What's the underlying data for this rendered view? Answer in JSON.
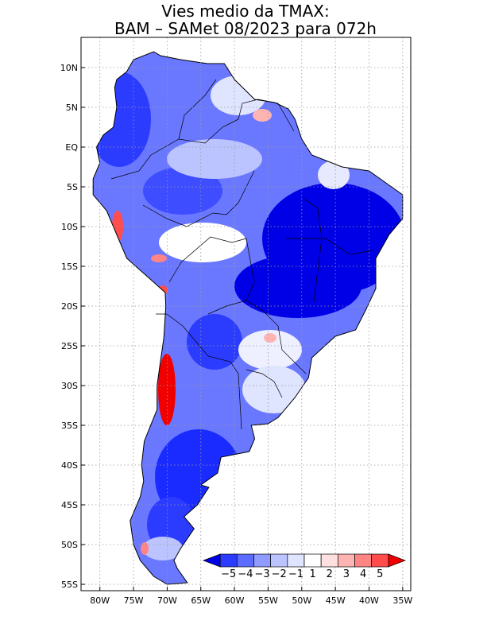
{
  "title_line1": "Vies medio da TMAX:",
  "title_line2": "BAM – SAMet 08/2023  para 072h",
  "lat_labels": [
    {
      "lat": 10,
      "label": "10N"
    },
    {
      "lat": 5,
      "label": "5N"
    },
    {
      "lat": 0,
      "label": "EQ"
    },
    {
      "lat": -5,
      "label": "5S"
    },
    {
      "lat": -10,
      "label": "10S"
    },
    {
      "lat": -15,
      "label": "15S"
    },
    {
      "lat": -20,
      "label": "20S"
    },
    {
      "lat": -25,
      "label": "25S"
    },
    {
      "lat": -30,
      "label": "30S"
    },
    {
      "lat": -35,
      "label": "35S"
    },
    {
      "lat": -40,
      "label": "40S"
    },
    {
      "lat": -45,
      "label": "45S"
    },
    {
      "lat": -50,
      "label": "50S"
    },
    {
      "lat": -55,
      "label": "55S"
    }
  ],
  "lon_labels": [
    {
      "lon": -80,
      "label": "80W"
    },
    {
      "lon": -75,
      "label": "75W"
    },
    {
      "lon": -70,
      "label": "70W"
    },
    {
      "lon": -65,
      "label": "65W"
    },
    {
      "lon": -60,
      "label": "60W"
    },
    {
      "lon": -55,
      "label": "55W"
    },
    {
      "lon": -50,
      "label": "50W"
    },
    {
      "lon": -45,
      "label": "45W"
    },
    {
      "lon": -40,
      "label": "40W"
    },
    {
      "lon": -35,
      "label": "35W"
    }
  ],
  "colorbar": {
    "colors": [
      "#0000e6",
      "#2c3cff",
      "#5b6cff",
      "#8f9bff",
      "#bcc4ff",
      "#dfe4ff",
      "#ffffff",
      "#ffe0e0",
      "#ffb4b4",
      "#ff8585",
      "#ff4d4d",
      "#f00000"
    ],
    "labels": [
      "-5",
      "-4",
      "-3",
      "-2",
      "-1",
      "1",
      "2",
      "3",
      "4",
      "5"
    ]
  },
  "grid": "dotted"
}
